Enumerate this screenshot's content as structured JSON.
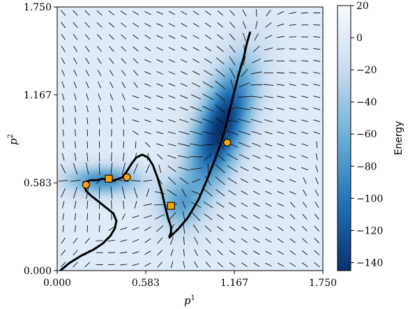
{
  "chart_data": {
    "type": "heatmap",
    "xlabel_base": "p",
    "xlabel_sup": "1",
    "ylabel_base": "p",
    "ylabel_sup": "2",
    "xlim": [
      0.0,
      1.75
    ],
    "ylim": [
      0.0,
      1.75
    ],
    "xticks": [
      "0.000",
      "0.583",
      "1.167",
      "1.750"
    ],
    "yticks": [
      "0.000",
      "0.583",
      "1.167",
      "1.750"
    ],
    "colorbar": {
      "label": "Energy",
      "range": [
        -145,
        20
      ],
      "ticks": [
        "20",
        "0",
        "−20",
        "−40",
        "−60",
        "−80",
        "−100",
        "−120",
        "−140"
      ],
      "tick_values": [
        20,
        0,
        -20,
        -40,
        -60,
        -80,
        -100,
        -120,
        -140
      ],
      "colormap": [
        "#08306b",
        "#2171b5",
        "#6baed6",
        "#c6dbef",
        "#f7fbff"
      ]
    },
    "energy_wells": [
      {
        "center": [
          1.08,
          0.95
        ],
        "depth": -145,
        "sx": 0.11,
        "sy": 0.3,
        "rotation_deg": 20
      },
      {
        "center": [
          0.3,
          0.6
        ],
        "depth": -85,
        "sx": 0.17,
        "sy": 0.065,
        "rotation_deg": 0
      },
      {
        "center": [
          0.8,
          0.44
        ],
        "depth": -55,
        "sx": 0.1,
        "sy": 0.11,
        "rotation_deg": 0
      }
    ],
    "path": {
      "color": "#000000",
      "x": [
        0.02,
        0.08,
        0.16,
        0.24,
        0.3,
        0.35,
        0.38,
        0.39,
        0.37,
        0.32,
        0.27,
        0.22,
        0.19,
        0.18,
        0.19,
        0.22,
        0.26,
        0.3,
        0.34,
        0.38,
        0.43,
        0.46,
        0.49,
        0.52,
        0.56,
        0.6,
        0.63,
        0.66,
        0.69,
        0.71,
        0.73,
        0.75,
        0.75,
        0.74,
        0.74,
        0.76,
        0.8,
        0.86,
        0.93,
        0.99,
        1.04,
        1.08,
        1.11,
        1.14,
        1.17,
        1.2,
        1.23,
        1.25,
        1.27
      ],
      "y": [
        0.0,
        0.05,
        0.1,
        0.14,
        0.18,
        0.23,
        0.28,
        0.33,
        0.38,
        0.42,
        0.46,
        0.5,
        0.53,
        0.56,
        0.59,
        0.6,
        0.6,
        0.61,
        0.6,
        0.6,
        0.62,
        0.66,
        0.71,
        0.75,
        0.77,
        0.75,
        0.7,
        0.62,
        0.52,
        0.43,
        0.35,
        0.29,
        0.25,
        0.23,
        0.22,
        0.24,
        0.28,
        0.35,
        0.47,
        0.61,
        0.74,
        0.85,
        0.96,
        1.08,
        1.2,
        1.32,
        1.42,
        1.51,
        1.58
      ]
    },
    "circle_markers": {
      "color": "#ffa500",
      "x": [
        0.19,
        0.46,
        1.12
      ],
      "y": [
        0.57,
        0.62,
        0.85
      ]
    },
    "square_markers": {
      "color": "#ffa500",
      "x": [
        0.34,
        0.75
      ],
      "y": [
        0.61,
        0.43
      ]
    }
  }
}
